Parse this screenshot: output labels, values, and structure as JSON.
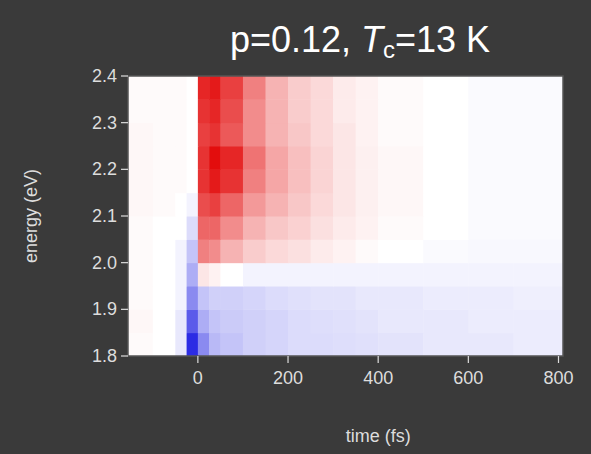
{
  "chart_data": {
    "type": "heatmap",
    "title": "p=0.12, Tc=13 K",
    "x_label": "time (fs)",
    "y_label": "energy (eV)",
    "xlim": [
      -155,
      810
    ],
    "ylim": [
      1.8,
      2.4
    ],
    "xticks": [
      0,
      200,
      400,
      600,
      800
    ],
    "yticks": [
      1.8,
      1.9,
      {
        "value": 2,
        "label": "2.0"
      },
      2.1,
      2.2,
      2.3,
      2.4
    ],
    "x_bins": [
      -155,
      -100,
      -50,
      -25,
      0,
      25,
      50,
      100,
      150,
      200,
      250,
      300,
      350,
      400,
      500,
      600,
      700,
      810
    ],
    "y_bins": [
      1.8,
      1.85,
      1.9,
      1.95,
      2.0,
      2.05,
      2.1,
      2.15,
      2.2,
      2.25,
      2.3,
      2.35,
      2.4
    ],
    "zlim": [
      -1,
      1
    ],
    "z": [
      [
        0.02,
        0,
        -0.1,
        -0.9,
        -0.5,
        -0.3,
        -0.25,
        -0.2,
        -0.18,
        -0.15,
        -0.15,
        -0.14,
        -0.13,
        -0.12,
        -0.1,
        -0.1,
        -0.08
      ],
      [
        0.03,
        0,
        -0.1,
        -0.7,
        -0.35,
        -0.25,
        -0.22,
        -0.2,
        -0.18,
        -0.15,
        -0.14,
        -0.13,
        -0.12,
        -0.1,
        -0.1,
        -0.08,
        -0.08
      ],
      [
        0.02,
        0,
        -0.05,
        -0.5,
        -0.25,
        -0.2,
        -0.2,
        -0.18,
        -0.15,
        -0.13,
        -0.12,
        -0.12,
        -0.1,
        -0.1,
        -0.08,
        -0.08,
        -0.07
      ],
      [
        0.02,
        0,
        -0.05,
        -0.35,
        0.1,
        0.05,
        0,
        -0.05,
        -0.05,
        -0.05,
        -0.05,
        -0.05,
        -0.05,
        -0.05,
        -0.05,
        -0.05,
        -0.05
      ],
      [
        0.02,
        0,
        -0.05,
        -0.25,
        0.5,
        0.45,
        0.3,
        0.2,
        0.15,
        0.12,
        0.08,
        0.05,
        0.02,
        0,
        -0.02,
        -0.03,
        -0.03
      ],
      [
        0.02,
        0,
        0,
        -0.15,
        0.6,
        0.6,
        0.45,
        0.3,
        0.22,
        0.18,
        0.12,
        0.08,
        0.05,
        0.02,
        0,
        -0.02,
        -0.02
      ],
      [
        0.03,
        0.02,
        0,
        -0.05,
        0.7,
        0.75,
        0.6,
        0.4,
        0.3,
        0.22,
        0.15,
        0.1,
        0.06,
        0.03,
        0,
        -0.02,
        -0.02
      ],
      [
        0.03,
        0.02,
        0.02,
        0,
        0.8,
        0.9,
        0.8,
        0.5,
        0.35,
        0.25,
        0.17,
        0.1,
        0.06,
        0.03,
        0,
        -0.02,
        -0.02
      ],
      [
        0.03,
        0.02,
        0.02,
        0,
        0.8,
        0.95,
        0.85,
        0.55,
        0.35,
        0.25,
        0.17,
        0.1,
        0.06,
        0.03,
        0,
        -0.02,
        -0.02
      ],
      [
        0.03,
        0.02,
        0.02,
        0,
        0.75,
        0.8,
        0.65,
        0.45,
        0.3,
        0.22,
        0.15,
        0.1,
        0.05,
        0.02,
        0,
        -0.02,
        -0.02
      ],
      [
        0.02,
        0.02,
        0.02,
        0,
        0.8,
        0.85,
        0.7,
        0.45,
        0.3,
        0.2,
        0.15,
        0.08,
        0.05,
        0.02,
        0,
        -0.02,
        -0.02
      ],
      [
        0.02,
        0.02,
        0.02,
        0,
        0.85,
        0.9,
        0.75,
        0.5,
        0.3,
        0.2,
        0.15,
        0.08,
        0.05,
        0.02,
        0,
        -0.02,
        -0.02
      ]
    ]
  }
}
